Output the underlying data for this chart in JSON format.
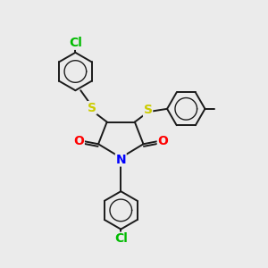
{
  "bg_color": "#ebebeb",
  "atom_colors": {
    "C": "#1a1a1a",
    "N": "#0000ff",
    "O": "#ff0000",
    "S": "#cccc00",
    "Cl": "#00bb00"
  },
  "bond_color": "#1a1a1a",
  "bond_width": 1.4,
  "font_size_atom": 10,
  "font_size_cl": 10,
  "font_size_me": 9
}
